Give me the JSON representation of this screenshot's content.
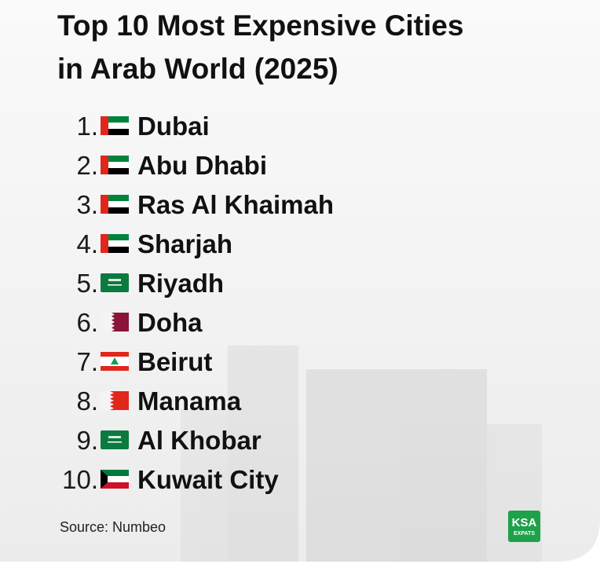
{
  "header": {
    "title_lines": [
      "Top 10 Most Expensive Cities",
      "in Arab World (2025)"
    ]
  },
  "list": {
    "items": [
      {
        "number": "1.",
        "city": "Dubai"
      },
      {
        "number": "2.",
        "city": "Abu Dhabi"
      },
      {
        "number": "3.",
        "city": "Ras Al Khaimah"
      },
      {
        "number": "4.",
        "city": "Sharjah"
      },
      {
        "number": "5.",
        "city": "Riyadh"
      },
      {
        "number": "6.",
        "city": "Doha"
      },
      {
        "number": "7.",
        "city": "Beirut"
      },
      {
        "number": "8.",
        "city": "Manama"
      },
      {
        "number": "9.",
        "city": "Al Khobar"
      },
      {
        "number": "10.",
        "city": "Kuwait City"
      }
    ]
  },
  "footer": {
    "source": "Source: Numbeo",
    "logo": {
      "line1": "KSA",
      "line2": "EXPATS"
    }
  }
}
